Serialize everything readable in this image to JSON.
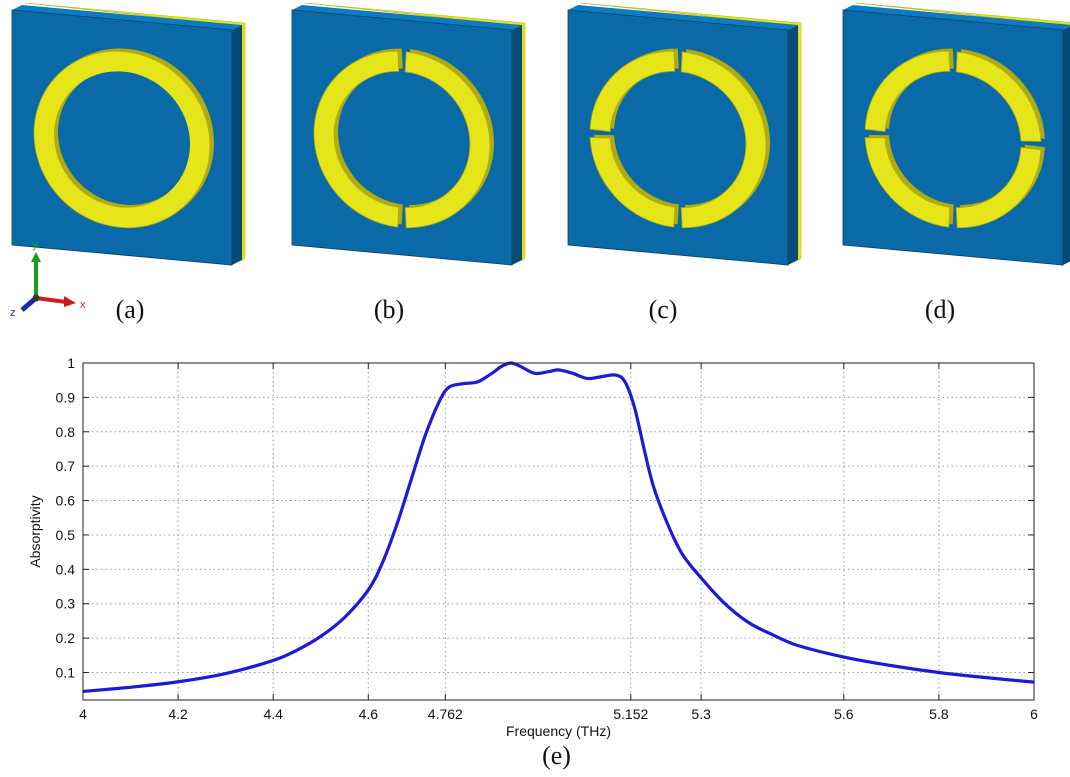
{
  "panels": [
    {
      "label": "(a)",
      "kind": "ring",
      "gap_angles": []
    },
    {
      "label": "(b)",
      "kind": "split-ring",
      "gap_angles": [
        90,
        270
      ]
    },
    {
      "label": "(c)",
      "kind": "split-ring",
      "gap_angles": [
        90,
        180,
        270
      ]
    },
    {
      "label": "(d)",
      "kind": "split-ring",
      "gap_angles": [
        0,
        90,
        180,
        270
      ]
    }
  ],
  "axis_triad": {
    "x": "x",
    "y": "y",
    "z": "z"
  },
  "colors": {
    "substrate_front": "#0a6aa8",
    "substrate_side": "#064a78",
    "substrate_top": "#0d7bbf",
    "metal": "#e5e51a",
    "metal_edge": "#b0ac10",
    "curve": "#1b1bd9",
    "axis_x": "#d11b1b",
    "axis_y": "#1c9c1c",
    "axis_z": "#1b2bb8"
  },
  "chart_data": {
    "type": "line",
    "label": "(e)",
    "xlabel": "Frequency (THz)",
    "ylabel": "Absorptivity",
    "xlim": [
      4,
      6
    ],
    "ylim": [
      0.02,
      1
    ],
    "xticks": [
      4,
      4.2,
      4.4,
      4.6,
      4.762,
      5.152,
      5.3,
      5.6,
      5.8,
      6
    ],
    "xtick_labels": [
      "4",
      "4.2",
      "4.4",
      "4.6",
      "4.762",
      "5.152",
      "5.3",
      "5.6",
      "5.8",
      "6"
    ],
    "yticks": [
      0.1,
      0.2,
      0.3,
      0.4,
      0.5,
      0.6,
      0.7,
      0.8,
      0.9,
      1
    ],
    "ytick_labels": [
      "0.1",
      "0.2",
      "0.3",
      "0.4",
      "0.5",
      "0.6",
      "0.7",
      "0.8",
      "0.9",
      "1"
    ],
    "grid": true,
    "series": [
      {
        "x": [
          4.0,
          4.1,
          4.2,
          4.3,
          4.4,
          4.45,
          4.5,
          4.55,
          4.6,
          4.63,
          4.66,
          4.69,
          4.72,
          4.75,
          4.77,
          4.8,
          4.83,
          4.86,
          4.88,
          4.9,
          4.92,
          4.95,
          4.98,
          5.0,
          5.03,
          5.06,
          5.09,
          5.12,
          5.14,
          5.16,
          5.18,
          5.2,
          5.23,
          5.26,
          5.3,
          5.35,
          5.4,
          5.45,
          5.5,
          5.6,
          5.7,
          5.8,
          5.9,
          6.0
        ],
        "y": [
          0.045,
          0.057,
          0.073,
          0.097,
          0.135,
          0.165,
          0.205,
          0.26,
          0.34,
          0.42,
          0.53,
          0.66,
          0.79,
          0.89,
          0.93,
          0.94,
          0.945,
          0.97,
          0.99,
          1.0,
          0.99,
          0.97,
          0.975,
          0.98,
          0.97,
          0.955,
          0.96,
          0.965,
          0.945,
          0.87,
          0.75,
          0.64,
          0.53,
          0.445,
          0.375,
          0.3,
          0.245,
          0.21,
          0.18,
          0.145,
          0.12,
          0.1,
          0.085,
          0.072
        ]
      }
    ]
  }
}
